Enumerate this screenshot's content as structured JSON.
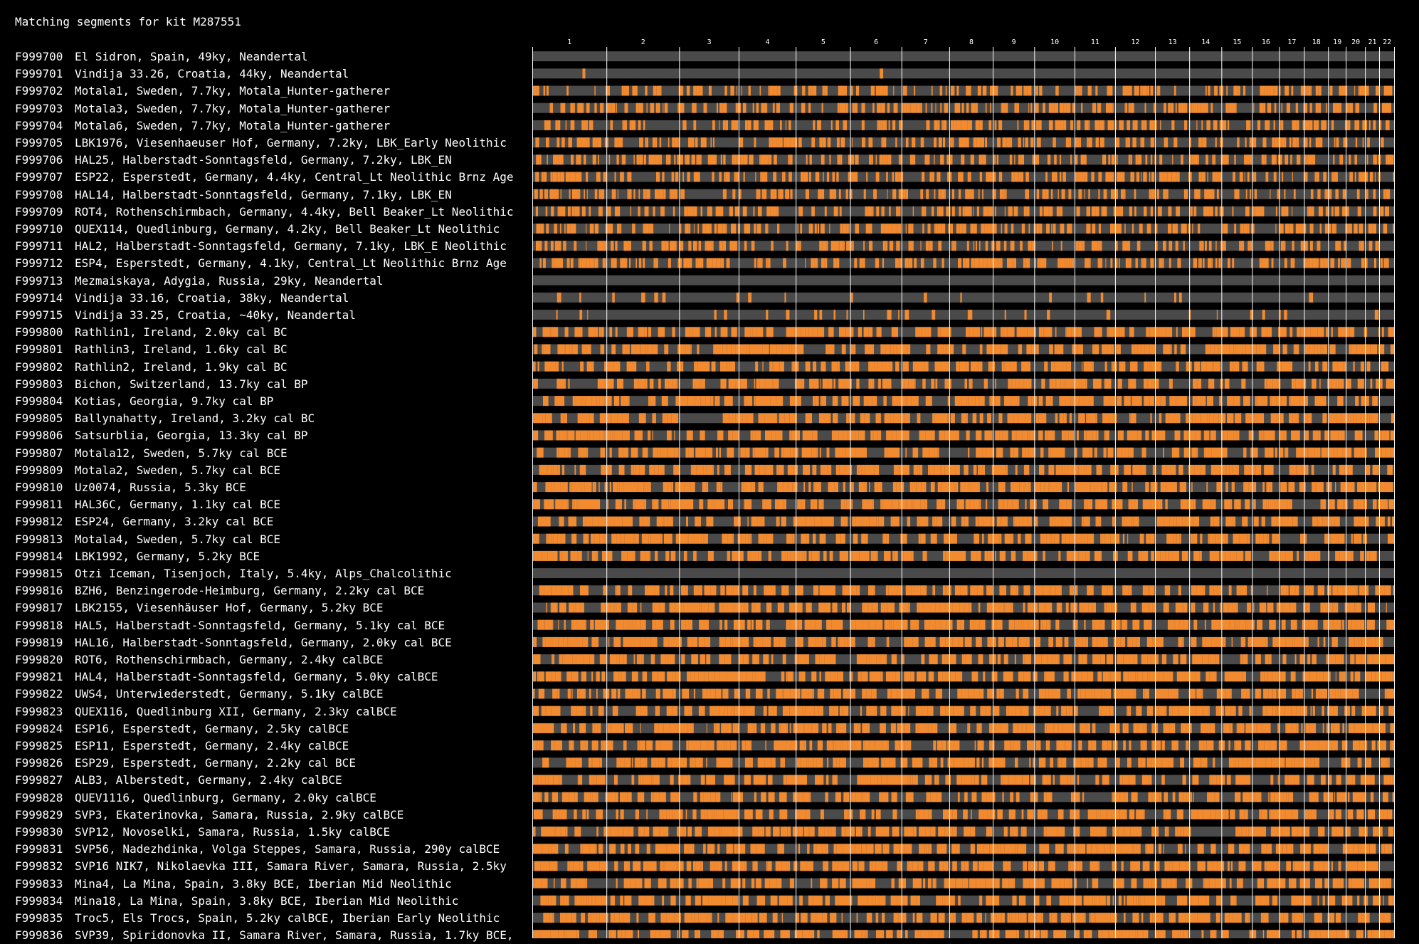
{
  "title": "Matching segments for kit M287551",
  "colors": {
    "background": "#000000",
    "match": "#F28A30",
    "nomatch": "#4A4A4A",
    "divider": "#FFFFFF",
    "text": "#FFFFFF"
  },
  "chromosomes": [
    {
      "label": "1",
      "length": 248
    },
    {
      "label": "2",
      "length": 242
    },
    {
      "label": "3",
      "length": 198
    },
    {
      "label": "4",
      "length": 190
    },
    {
      "label": "5",
      "length": 181
    },
    {
      "label": "6",
      "length": 171
    },
    {
      "label": "7",
      "length": 159
    },
    {
      "label": "8",
      "length": 145
    },
    {
      "label": "9",
      "length": 138
    },
    {
      "label": "10",
      "length": 134
    },
    {
      "label": "11",
      "length": 135
    },
    {
      "label": "12",
      "length": 133
    },
    {
      "label": "13",
      "length": 114
    },
    {
      "label": "14",
      "length": 107
    },
    {
      "label": "15",
      "length": 102
    },
    {
      "label": "16",
      "length": 90
    },
    {
      "label": "17",
      "length": 83
    },
    {
      "label": "18",
      "length": 80
    },
    {
      "label": "19",
      "length": 59
    },
    {
      "label": "20",
      "length": 64
    },
    {
      "label": "21",
      "length": 47
    },
    {
      "label": "22",
      "length": 51
    }
  ],
  "kits": [
    {
      "id": "F999700",
      "desc": "El Sidron, Spain, 49ky, Neandertal",
      "level": "low"
    },
    {
      "id": "F999701",
      "desc": "Vindija 33.26, Croatia, 44ky, Neandertal",
      "level": "low"
    },
    {
      "id": "F999702",
      "desc": "Motala1, Sweden, 7.7ky, Motala_Hunter-gatherer",
      "level": "mid"
    },
    {
      "id": "F999703",
      "desc": "Motala3, Sweden, 7.7ky, Motala_Hunter-gatherer",
      "level": "mid"
    },
    {
      "id": "F999704",
      "desc": "Motala6, Sweden, 7.7ky, Motala_Hunter-gatherer",
      "level": "mid"
    },
    {
      "id": "F999705",
      "desc": "LBK1976, Viesenhaeuser Hof, Germany, 7.2ky, LBK_Early Neolithic",
      "level": "mid"
    },
    {
      "id": "F999706",
      "desc": "HAL25, Halberstadt-Sonntagsfeld, Germany, 7.2ky, LBK_EN",
      "level": "mid"
    },
    {
      "id": "F999707",
      "desc": "ESP22, Esperstedt, Germany, 4.4ky, Central_Lt Neolithic Brnz Age",
      "level": "mid"
    },
    {
      "id": "F999708",
      "desc": "HAL14, Halberstadt-Sonntagsfeld, Germany, 7.1ky, LBK_EN",
      "level": "mid"
    },
    {
      "id": "F999709",
      "desc": "ROT4, Rothenschirmbach, Germany, 4.4ky, Bell Beaker_Lt Neolithic",
      "level": "mid"
    },
    {
      "id": "F999710",
      "desc": "QUEX114, Quedlinburg, Germany, 4.2ky, Bell Beaker_Lt Neolithic",
      "level": "mid"
    },
    {
      "id": "F999711",
      "desc": "HAL2, Halberstadt-Sonntagsfeld, Germany, 7.1ky, LBK_E Neolithic",
      "level": "mid"
    },
    {
      "id": "F999712",
      "desc": "ESP4, Esperstedt, Germany, 4.1ky, Central_Lt Neolithic Brnz Age",
      "level": "mid"
    },
    {
      "id": "F999713",
      "desc": "Mezmaiskaya, Adygia, Russia, 29ky, Neandertal",
      "level": "none"
    },
    {
      "id": "F999714",
      "desc": "Vindija 33.16, Croatia, 38ky, Neandertal",
      "level": "sparse"
    },
    {
      "id": "F999715",
      "desc": "Vindija 33.25, Croatia, ~40ky, Neandertal",
      "level": "sparse"
    },
    {
      "id": "F999800",
      "desc": "Rathlin1, Ireland, 2.0ky cal BC",
      "level": "high"
    },
    {
      "id": "F999801",
      "desc": "Rathlin3, Ireland, 1.6ky cal BC",
      "level": "high"
    },
    {
      "id": "F999802",
      "desc": "Rathlin2, Ireland, 1.9ky cal BC",
      "level": "high"
    },
    {
      "id": "F999803",
      "desc": "Bichon, Switzerland, 13.7ky cal BP",
      "level": "high"
    },
    {
      "id": "F999804",
      "desc": "Kotias, Georgia, 9.7ky cal BP",
      "level": "high"
    },
    {
      "id": "F999805",
      "desc": "Ballynahatty, Ireland, 3.2ky cal BC",
      "level": "high"
    },
    {
      "id": "F999806",
      "desc": "Satsurblia, Georgia, 13.3ky cal BP",
      "level": "high"
    },
    {
      "id": "F999807",
      "desc": "Motala12, Sweden, 5.7ky cal BCE",
      "level": "high"
    },
    {
      "id": "F999809",
      "desc": "Motala2, Sweden, 5.7ky cal BCE",
      "level": "high"
    },
    {
      "id": "F999810",
      "desc": "Uz0074, Russia, 5.3ky BCE",
      "level": "high"
    },
    {
      "id": "F999811",
      "desc": "HAL36C, Germany, 1.1ky cal BCE",
      "level": "high"
    },
    {
      "id": "F999812",
      "desc": "ESP24, Germany, 3.2ky cal BCE",
      "level": "high"
    },
    {
      "id": "F999813",
      "desc": "Motala4, Sweden, 5.7ky cal BCE",
      "level": "high"
    },
    {
      "id": "F999814",
      "desc": "LBK1992, Germany, 5.2ky BCE",
      "level": "high"
    },
    {
      "id": "F999815",
      "desc": "Otzi Iceman, Tisenjoch, Italy, 5.4ky, Alps_Chalcolithic",
      "level": "none"
    },
    {
      "id": "F999816",
      "desc": "BZH6, Benzingerode-Heimburg, Germany, 2.2ky cal BCE",
      "level": "high"
    },
    {
      "id": "F999817",
      "desc": "LBK2155, Viesenhäuser Hof, Germany, 5.2ky BCE",
      "level": "high"
    },
    {
      "id": "F999818",
      "desc": "HAL5, Halberstadt-Sonntagsfeld, Germany, 5.1ky cal BCE",
      "level": "high"
    },
    {
      "id": "F999819",
      "desc": "HAL16, Halberstadt-Sonntagsfeld, Germany, 2.0ky cal BCE",
      "level": "high"
    },
    {
      "id": "F999820",
      "desc": "ROT6, Rothenschirmbach, Germany, 2.4ky calBCE",
      "level": "high"
    },
    {
      "id": "F999821",
      "desc": "HAL4, Halberstadt-Sonntagsfeld, Germany, 5.0ky calBCE",
      "level": "high"
    },
    {
      "id": "F999822",
      "desc": "UWS4, Unterwiederstedt, Germany, 5.1ky calBCE",
      "level": "high"
    },
    {
      "id": "F999823",
      "desc": "QUEX116, Quedlinburg XII, Germany, 2.3ky calBCE",
      "level": "high"
    },
    {
      "id": "F999824",
      "desc": "ESP16, Esperstedt, Germany, 2.5ky calBCE",
      "level": "high"
    },
    {
      "id": "F999825",
      "desc": "ESP11, Esperstedt, Germany, 2.4ky calBCE",
      "level": "high"
    },
    {
      "id": "F999826",
      "desc": "ESP29, Esperstedt, Germany, 2.2ky cal BCE",
      "level": "high"
    },
    {
      "id": "F999827",
      "desc": "ALB3, Alberstedt, Germany, 2.4ky calBCE",
      "level": "high"
    },
    {
      "id": "F999828",
      "desc": "QUEV1116, Quedlinburg, Germany, 2.0ky calBCE",
      "level": "high"
    },
    {
      "id": "F999829",
      "desc": "SVP3, Ekaterinovka, Samara, Russia, 2.9ky calBCE",
      "level": "high"
    },
    {
      "id": "F999830",
      "desc": "SVP12, Novoselki, Samara, Russia, 1.5ky calBCE",
      "level": "high"
    },
    {
      "id": "F999831",
      "desc": "SVP56, Nadezhdinka, Volga Steppes, Samara, Russia, 290y calBCE",
      "level": "high"
    },
    {
      "id": "F999832",
      "desc": "SVP16 NIK7, Nikolaevka III, Samara River, Samara, Russia, 2.5ky",
      "level": "high"
    },
    {
      "id": "F999833",
      "desc": "Mina4, La Mina, Spain, 3.8ky BCE, Iberian Mid Neolithic",
      "level": "high"
    },
    {
      "id": "F999834",
      "desc": "Mina18, La Mina, Spain, 3.8ky BCE, Iberian Mid Neolithic",
      "level": "high"
    },
    {
      "id": "F999835",
      "desc": "Troc5, Els Trocs, Spain, 5.2ky calBCE, Iberian Early Neolithic",
      "level": "high"
    },
    {
      "id": "F999836",
      "desc": "SVP39, Spiridonovka II, Samara River, Samara, Russia, 1.7ky BCE,",
      "level": "high"
    }
  ]
}
